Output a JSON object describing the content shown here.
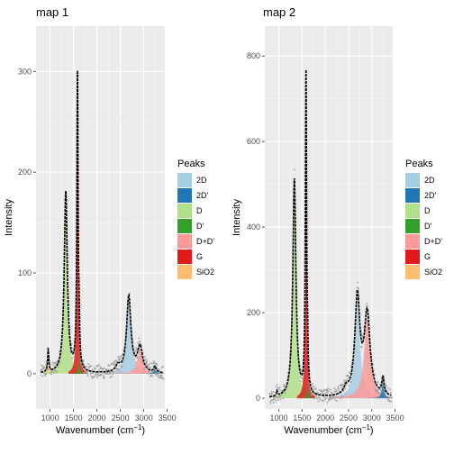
{
  "chart_data": [
    {
      "type": "area",
      "title": "map 1",
      "xlabel": "Wavenumber (cm",
      "xlabel_sup": "−1",
      "xlabel_close": ")",
      "ylabel": "Intensity",
      "xlim": [
        700,
        3450
      ],
      "ylim": [
        -35,
        345
      ],
      "xticks": [
        1000,
        1500,
        2000,
        2500,
        3000,
        3500
      ],
      "yticks": [
        0,
        100,
        200,
        300
      ],
      "grid": true,
      "legend_position": "right",
      "legend_title": "Peaks",
      "legend": [
        "2D",
        "2D'",
        "D",
        "D'",
        "D+D'",
        "G",
        "SiO2"
      ],
      "colors": {
        "2D": "#a6cee3",
        "2D'": "#1f78b4",
        "D": "#b2df8a",
        "D'": "#33a02c",
        "D+D'": "#fb9a99",
        "G": "#e31a1c",
        "SiO2": "#fdbf6f"
      },
      "peaks": [
        {
          "name": "SiO2",
          "center": 960,
          "height": 22,
          "width": 15
        },
        {
          "name": "D",
          "center": 1335,
          "height": 180,
          "width": 40
        },
        {
          "name": "G",
          "center": 1585,
          "height": 294,
          "width": 16
        },
        {
          "name": "D'",
          "center": 1620,
          "height": 30,
          "width": 12
        },
        {
          "name": "D+D'",
          "center": 2450,
          "height": 6,
          "width": 60
        },
        {
          "name": "2D",
          "center": 2680,
          "height": 76,
          "width": 55
        },
        {
          "name": "D+D'",
          "center": 2920,
          "height": 25,
          "width": 65
        },
        {
          "name": "2D'",
          "center": 3240,
          "height": 6,
          "width": 30
        }
      ]
    },
    {
      "type": "area",
      "title": "map 2",
      "xlabel": "Wavenumber (cm",
      "xlabel_sup": "−1",
      "xlabel_close": ")",
      "ylabel": "Intensity",
      "xlim": [
        700,
        3450
      ],
      "ylim": [
        -25,
        870
      ],
      "xticks": [
        1000,
        1500,
        2000,
        2500,
        3000,
        3500
      ],
      "yticks": [
        0,
        200,
        400,
        600,
        800
      ],
      "grid": true,
      "legend_position": "right",
      "legend_title": "Peaks",
      "legend": [
        "2D",
        "2D'",
        "D",
        "D'",
        "D+D'",
        "G",
        "SiO2"
      ],
      "colors": {
        "2D": "#a6cee3",
        "2D'": "#1f78b4",
        "D": "#b2df8a",
        "D'": "#33a02c",
        "D+D'": "#fb9a99",
        "G": "#e31a1c",
        "SiO2": "#fdbf6f"
      },
      "peaks": [
        {
          "name": "SiO2",
          "center": 960,
          "height": 12,
          "width": 15
        },
        {
          "name": "D",
          "center": 1335,
          "height": 510,
          "width": 40
        },
        {
          "name": "G",
          "center": 1585,
          "height": 750,
          "width": 16
        },
        {
          "name": "D'",
          "center": 1620,
          "height": 60,
          "width": 12
        },
        {
          "name": "D+D'",
          "center": 2450,
          "height": 15,
          "width": 60
        },
        {
          "name": "2D",
          "center": 2690,
          "height": 230,
          "width": 65
        },
        {
          "name": "D+D'",
          "center": 2900,
          "height": 190,
          "width": 75
        },
        {
          "name": "2D'",
          "center": 3240,
          "height": 40,
          "width": 30
        }
      ]
    }
  ]
}
